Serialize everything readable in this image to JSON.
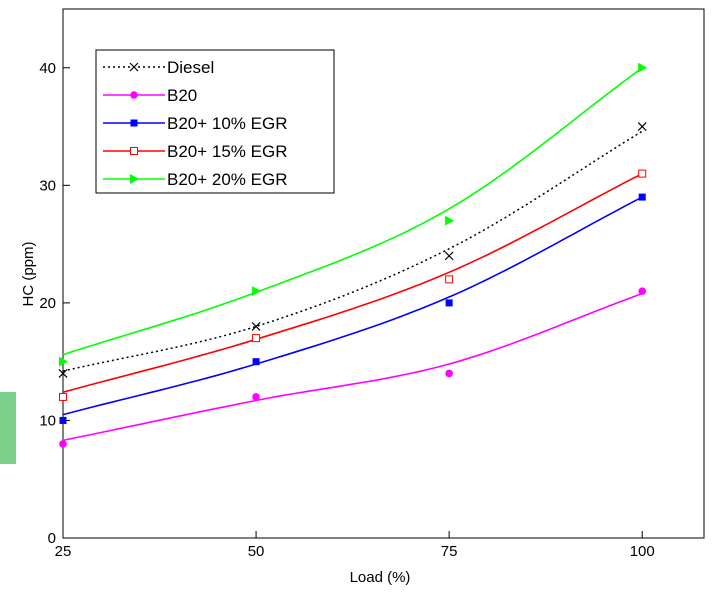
{
  "chart_data": {
    "type": "line",
    "xlabel": "Load (%)",
    "ylabel": "HC (ppm)",
    "xlim": [
      25,
      108
    ],
    "ylim": [
      0,
      45
    ],
    "x_ticks": [
      25,
      50,
      75,
      100
    ],
    "y_ticks": [
      0,
      10,
      20,
      30,
      40
    ],
    "x_tick_labels": [
      "25",
      "50",
      "75",
      "100"
    ],
    "y_tick_labels": [
      "0",
      "10",
      "20",
      "30",
      "40"
    ],
    "grid": false,
    "legend_position": "top-left",
    "x": [
      25,
      50,
      75,
      100
    ],
    "series": [
      {
        "name": "Diesel",
        "values": [
          14,
          18,
          24,
          35
        ],
        "color": "#000000",
        "marker": "x",
        "line_style": "dotted",
        "fit_values": [
          14.2,
          18.0,
          24.6,
          34.6
        ]
      },
      {
        "name": "B20",
        "values": [
          8,
          12,
          14,
          21
        ],
        "color": "#ff00ff",
        "marker": "filled-circle",
        "line_style": "solid",
        "fit_values": [
          8.3,
          11.7,
          14.8,
          20.8
        ]
      },
      {
        "name": "B20+ 10% EGR",
        "values": [
          10,
          15,
          20,
          29
        ],
        "color": "#0000ff",
        "marker": "filled-square",
        "line_style": "solid",
        "fit_values": [
          10.5,
          14.8,
          20.5,
          29.0
        ]
      },
      {
        "name": "B20+ 15% EGR",
        "values": [
          12,
          17,
          22,
          31
        ],
        "color": "#ff0000",
        "marker": "open-square",
        "line_style": "solid",
        "fit_values": [
          12.4,
          16.9,
          22.6,
          31.0
        ]
      },
      {
        "name": "B20+ 20% EGR",
        "values": [
          15,
          21,
          27,
          40
        ],
        "color": "#00ff00",
        "marker": "filled-triangle-right",
        "line_style": "solid",
        "fit_values": [
          15.6,
          20.9,
          28.0,
          40.0
        ]
      }
    ]
  }
}
